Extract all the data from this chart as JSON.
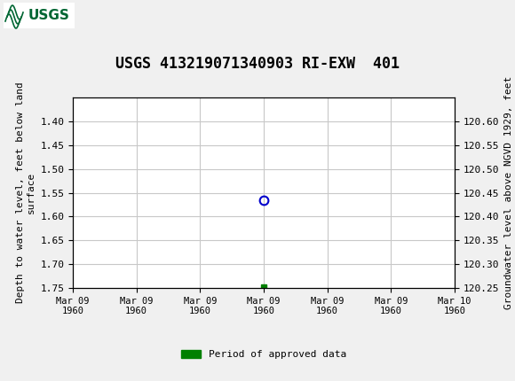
{
  "title": "USGS 413219071340903 RI-EXW  401",
  "ylabel_left": "Depth to water level, feet below land\nsurface",
  "ylabel_right": "Groundwater level above NGVD 1929, feet",
  "ylim_left": [
    1.75,
    1.35
  ],
  "ylim_right": [
    120.25,
    120.65
  ],
  "yticks_left": [
    1.4,
    1.45,
    1.5,
    1.55,
    1.6,
    1.65,
    1.7,
    1.75
  ],
  "yticks_right": [
    120.6,
    120.55,
    120.5,
    120.45,
    120.4,
    120.35,
    120.3,
    120.25
  ],
  "xlim": [
    0,
    6
  ],
  "xtick_labels": [
    "Mar 09\n1960",
    "Mar 09\n1960",
    "Mar 09\n1960",
    "Mar 09\n1960",
    "Mar 09\n1960",
    "Mar 09\n1960",
    "Mar 10\n1960"
  ],
  "xtick_positions": [
    0,
    1,
    2,
    3,
    4,
    5,
    6
  ],
  "data_point_x": 3,
  "data_point_y": 1.565,
  "data_point_color": "#0000cc",
  "green_marker_x": 3,
  "green_marker_y": 1.748,
  "green_marker_color": "#008000",
  "legend_label": "Period of approved data",
  "legend_color": "#008000",
  "header_color": "#006633",
  "background_color": "#f0f0f0",
  "plot_bg_color": "#ffffff",
  "grid_color": "#c8c8c8",
  "title_fontsize": 12,
  "axis_fontsize": 8,
  "tick_fontsize": 8
}
